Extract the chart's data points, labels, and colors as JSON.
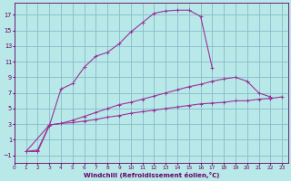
{
  "bg_color": "#b8e8e8",
  "line_color": "#993399",
  "grid_color": "#88bbcc",
  "xlabel": "Windchill (Refroidissement éolien,°C)",
  "xlabel_color": "#660066",
  "tick_color": "#660066",
  "xlim": [
    0,
    23.5
  ],
  "ylim": [
    -2,
    18.5
  ],
  "xticks": [
    0,
    1,
    2,
    3,
    4,
    5,
    6,
    7,
    8,
    9,
    10,
    11,
    12,
    13,
    14,
    15,
    16,
    17,
    18,
    19,
    20,
    21,
    22,
    23
  ],
  "yticks": [
    -1,
    1,
    3,
    5,
    7,
    9,
    11,
    13,
    15,
    17
  ],
  "curve1_x": [
    1,
    2,
    3,
    4,
    5,
    6,
    7,
    8,
    9,
    10,
    11,
    12,
    13,
    14,
    15,
    16,
    17
  ],
  "curve1_y": [
    -0.5,
    -0.5,
    2.8,
    7.5,
    8.2,
    10.3,
    11.7,
    12.2,
    13.3,
    14.8,
    16.0,
    17.2,
    17.5,
    17.6,
    17.6,
    16.8,
    10.2
  ],
  "curve2_x": [
    1,
    2,
    3,
    4,
    5,
    6,
    7,
    8,
    9,
    10,
    11,
    12,
    13,
    14,
    15,
    16,
    17,
    18,
    19,
    20,
    21,
    22
  ],
  "curve2_y": [
    -0.5,
    -0.3,
    2.9,
    3.1,
    3.5,
    4.0,
    4.5,
    5.0,
    5.5,
    5.8,
    6.2,
    6.6,
    7.0,
    7.4,
    7.8,
    8.1,
    8.5,
    8.8,
    9.0,
    8.5,
    7.0,
    6.5
  ],
  "curve3_x": [
    1,
    3,
    4,
    5,
    6,
    7,
    8,
    9,
    10,
    11,
    12,
    13,
    14,
    15,
    16,
    17,
    18,
    19,
    20,
    21,
    22,
    23
  ],
  "curve3_y": [
    -0.5,
    2.9,
    3.1,
    3.2,
    3.4,
    3.6,
    3.9,
    4.1,
    4.4,
    4.6,
    4.8,
    5.0,
    5.2,
    5.4,
    5.6,
    5.7,
    5.8,
    6.0,
    6.0,
    6.2,
    6.3,
    6.5
  ]
}
